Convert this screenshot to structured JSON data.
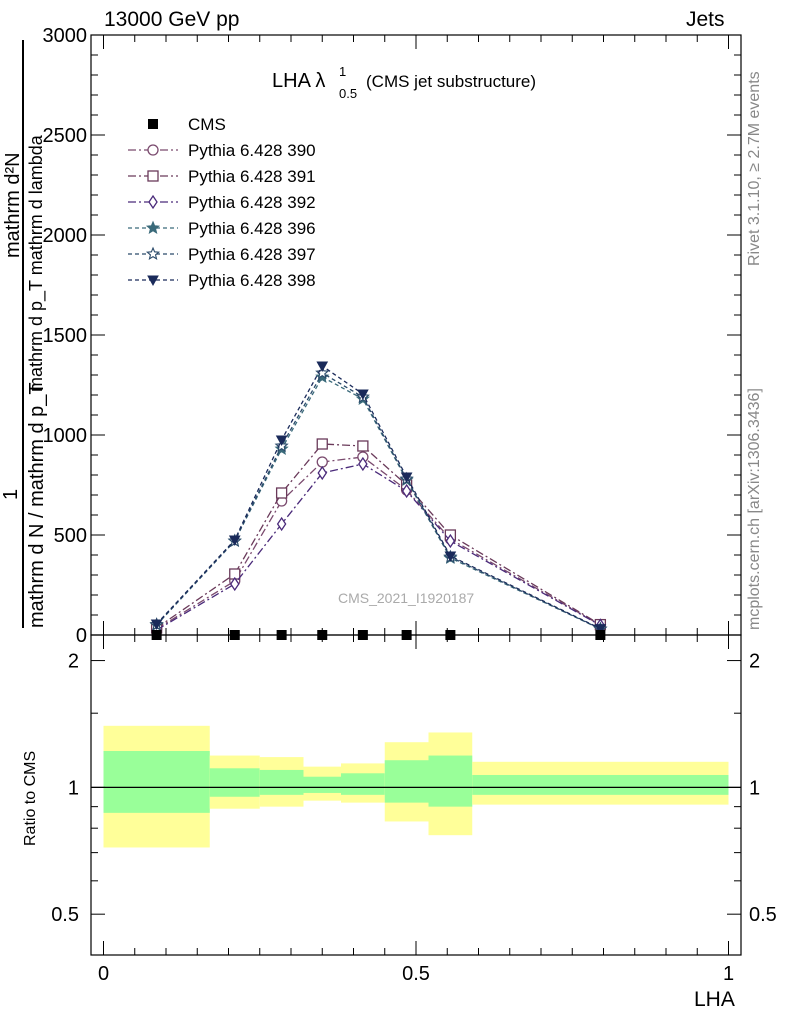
{
  "header": {
    "left": "13000 GeV pp",
    "right": "Jets"
  },
  "side_labels": {
    "rivet": "Rivet 3.1.10, ≥ 2.7M events",
    "mcplots": "mcplots.cern.ch [arXiv:1306.3436]"
  },
  "main_plot": {
    "title": "LHA λ",
    "title_sup": "1",
    "title_sub": "0.5",
    "title_suffix": "(CMS jet substructure)",
    "ylabel_top": "mathrm d²N",
    "ylabel_top2": "mathrm d p_T mathrm d lambda",
    "ylabel_num": "1",
    "ylabel_den": "mathrm d N / mathrm d p_T",
    "watermark": "CMS_2021_I1920187",
    "xlim": [
      -0.02,
      1.02
    ],
    "ylim": [
      0,
      3000
    ],
    "yticks": [
      {
        "value": 0,
        "label": "0"
      },
      {
        "value": 500,
        "label": "500"
      },
      {
        "value": 1000,
        "label": "1000"
      },
      {
        "value": 1500,
        "label": "1500"
      },
      {
        "value": 2000,
        "label": "2000"
      },
      {
        "value": 2500,
        "label": "2500"
      },
      {
        "value": 3000,
        "label": "3000"
      }
    ]
  },
  "ratio_plot": {
    "ylabel": "Ratio to CMS",
    "xlabel": "LHA",
    "yticks": [
      {
        "value": 0.5,
        "label": "0.5"
      },
      {
        "value": 1,
        "label": "1"
      },
      {
        "value": 2,
        "label": "2"
      }
    ],
    "xticks": [
      {
        "value": 0,
        "label": "0"
      },
      {
        "value": 0.5,
        "label": "0.5"
      },
      {
        "value": 1,
        "label": "1"
      }
    ]
  },
  "chart_data": {
    "type": "line",
    "title": "LHA λ^1_0.5 (CMS jet substructure)",
    "xlabel": "LHA",
    "ylabel": "1/(mathrm d N / mathrm d p_T) mathrm d²N/(mathrm d p_T mathrm d lambda)",
    "xlim": [
      -0.02,
      1.02
    ],
    "ylim": [
      0,
      3000
    ],
    "x": [
      0.085,
      0.21,
      0.285,
      0.35,
      0.415,
      0.485,
      0.555,
      0.795
    ],
    "bin_edges": [
      0,
      0.17,
      0.25,
      0.32,
      0.38,
      0.45,
      0.52,
      0.59,
      1.0
    ],
    "data": {
      "name": "CMS",
      "values": [
        0,
        0,
        0,
        0,
        0,
        0,
        0,
        0
      ]
    },
    "series": [
      {
        "name": "Pythia 6.428 390",
        "color": "#7a4a6e",
        "marker": "circle-open",
        "dash": "8,3,2,3",
        "values": [
          30,
          270,
          670,
          865,
          890,
          725,
          480,
          50
        ]
      },
      {
        "name": "Pythia 6.428 391",
        "color": "#6a3a5a",
        "marker": "square-open",
        "dash": "8,3,2,3",
        "values": [
          35,
          305,
          710,
          955,
          945,
          750,
          500,
          52
        ]
      },
      {
        "name": "Pythia 6.428 392",
        "color": "#4a2a7a",
        "marker": "diamond-open",
        "dash": "8,3,2,3",
        "values": [
          25,
          255,
          555,
          810,
          855,
          720,
          470,
          48
        ]
      },
      {
        "name": "Pythia 6.428 396",
        "color": "#3a6a7a",
        "marker": "star-filled",
        "dash": "4,3",
        "values": [
          50,
          470,
          930,
          1290,
          1180,
          775,
          385,
          30
        ]
      },
      {
        "name": "Pythia 6.428 397",
        "color": "#2a4a6a",
        "marker": "star-open",
        "dash": "4,3",
        "values": [
          52,
          470,
          945,
          1310,
          1190,
          780,
          390,
          30
        ]
      },
      {
        "name": "Pythia 6.428 398",
        "color": "#1a2a5a",
        "marker": "triangle-down-filled",
        "dash": "4,3",
        "values": [
          55,
          475,
          975,
          1345,
          1205,
          790,
          395,
          32
        ]
      }
    ],
    "ratio_bands": [
      {
        "x0": 0,
        "x1": 0.17,
        "inner": [
          0.87,
          1.22
        ],
        "outer": [
          0.72,
          1.4
        ]
      },
      {
        "x0": 0.17,
        "x1": 0.25,
        "inner": [
          0.95,
          1.11
        ],
        "outer": [
          0.89,
          1.19
        ]
      },
      {
        "x0": 0.25,
        "x1": 0.32,
        "inner": [
          0.96,
          1.1
        ],
        "outer": [
          0.9,
          1.18
        ]
      },
      {
        "x0": 0.32,
        "x1": 0.38,
        "inner": [
          0.97,
          1.06
        ],
        "outer": [
          0.93,
          1.12
        ]
      },
      {
        "x0": 0.38,
        "x1": 0.45,
        "inner": [
          0.96,
          1.08
        ],
        "outer": [
          0.92,
          1.14
        ]
      },
      {
        "x0": 0.45,
        "x1": 0.52,
        "inner": [
          0.92,
          1.16
        ],
        "outer": [
          0.83,
          1.28
        ]
      },
      {
        "x0": 0.52,
        "x1": 0.59,
        "inner": [
          0.9,
          1.19
        ],
        "outer": [
          0.77,
          1.35
        ]
      },
      {
        "x0": 0.59,
        "x1": 1.0,
        "inner": [
          0.96,
          1.07
        ],
        "outer": [
          0.91,
          1.15
        ]
      }
    ],
    "ratio_ylim": [
      0.4,
      2.3
    ],
    "ratio_yscale": "log",
    "legend_placement": "top-left",
    "grid": false
  }
}
